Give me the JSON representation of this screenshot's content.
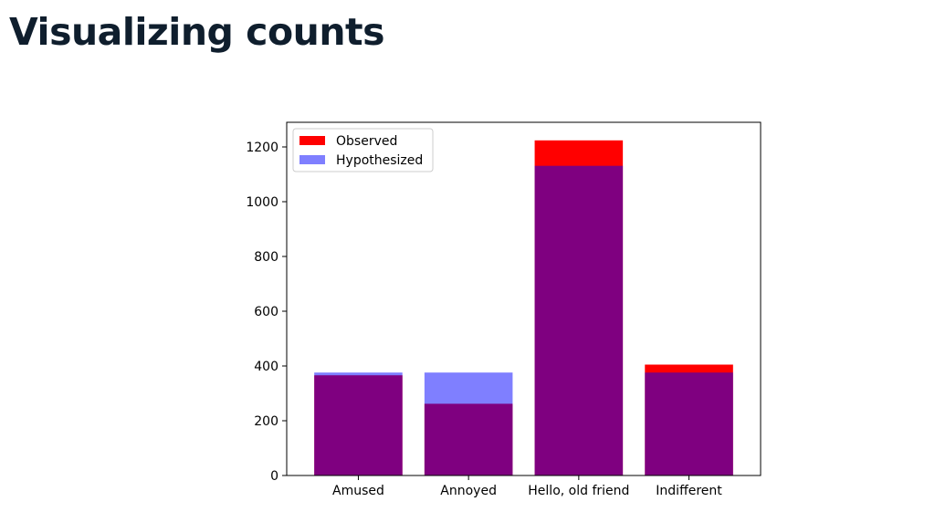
{
  "slide": {
    "title": "Visualizing counts"
  },
  "chart_data": {
    "type": "bar",
    "categories": [
      "Amused",
      "Annoyed",
      "Hello, old friend",
      "Indifferent"
    ],
    "series": [
      {
        "name": "Observed",
        "values": [
          366,
          262,
          1224,
          405
        ],
        "color": "#ff0000",
        "opacity": 1.0
      },
      {
        "name": "Hypothesized",
        "values": [
          376,
          376,
          1131,
          376
        ],
        "color": "#0000ff",
        "opacity": 0.5
      }
    ],
    "overlay": true,
    "title": "",
    "xlabel": "",
    "ylabel": "",
    "ylim": [
      0,
      1290
    ],
    "yticks": [
      0,
      200,
      400,
      600,
      800,
      1000,
      1200
    ],
    "grid": false,
    "legend": "top-left"
  }
}
